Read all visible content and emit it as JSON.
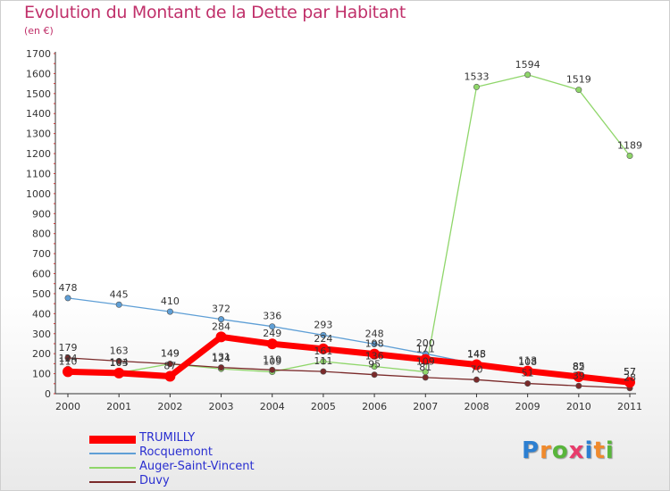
{
  "title": "Evolution du Montant de la Dette par Habitant",
  "subtitle": "(en €)",
  "logo": {
    "text": "Proxiti",
    "colors": [
      "#2c7fd1",
      "#f08a2c",
      "#58b53b",
      "#e83c6b",
      "#2c7fd1",
      "#f08a2c",
      "#58b53b"
    ]
  },
  "chart_data": {
    "type": "line",
    "title": "Evolution du Montant de la Dette par Habitant",
    "ylabel": "(en €)",
    "xlabel": "",
    "x": [
      "2000",
      "2001",
      "2002",
      "2003",
      "2004",
      "2005",
      "2006",
      "2007",
      "2008",
      "2009",
      "2010",
      "2011"
    ],
    "ylim": [
      0,
      1700
    ],
    "yticks": [
      "0",
      "100",
      "200",
      "300",
      "400",
      "500",
      "600",
      "700",
      "800",
      "900",
      "1000",
      "1100",
      "1200",
      "1300",
      "1400",
      "1500",
      "1600",
      "1700"
    ],
    "grid": false,
    "legend": "bottom-left",
    "series": [
      {
        "name": "TRUMILLY",
        "color": "#ff0000",
        "values": [
          110,
          103,
          87,
          284,
          249,
          224,
          198,
          171,
          145,
          113,
          85,
          57
        ]
      },
      {
        "name": "Rocquemont",
        "color": "#5f9fd6",
        "values": [
          478,
          445,
          410,
          372,
          336,
          293,
          248,
          200,
          148,
          108,
          82,
          57
        ]
      },
      {
        "name": "Auger-Saint-Vincent",
        "color": "#8fd66a",
        "values": [
          124,
          104,
          149,
          124,
          109,
          161,
          136,
          109,
          1533,
          1594,
          1519,
          1189
        ]
      },
      {
        "name": "Duvy",
        "color": "#7a2a2a",
        "values": [
          179,
          163,
          149,
          131,
          119,
          111,
          95,
          81,
          70,
          51,
          39,
          28
        ]
      }
    ]
  }
}
